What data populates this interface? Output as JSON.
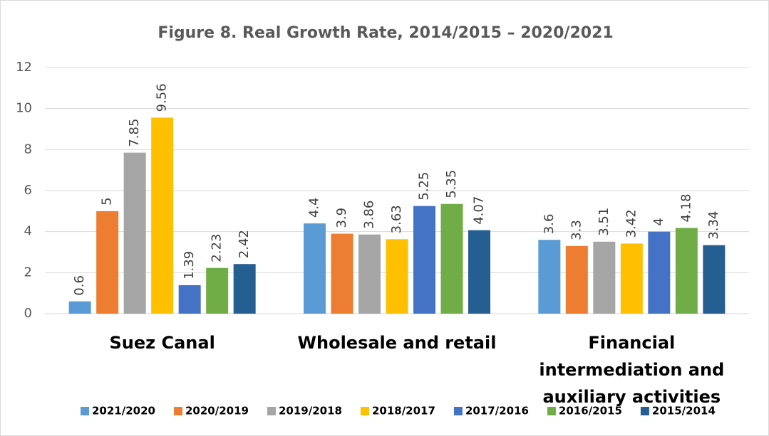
{
  "chart_data": {
    "type": "bar",
    "title": "Figure 8. Real Growth Rate, 2014/2015 – 2020/2021",
    "categories": [
      "Suez Canal",
      "Wholesale and retail",
      "Financial intermediation and auxiliary activities"
    ],
    "series": [
      {
        "name": "2021/2020",
        "color": "#5b9bd5",
        "values": [
          0.6,
          4.4,
          3.6
        ]
      },
      {
        "name": "2020/2019",
        "color": "#ed7d31",
        "values": [
          5,
          3.9,
          3.3
        ]
      },
      {
        "name": "2019/2018",
        "color": "#a5a5a5",
        "values": [
          7.85,
          3.86,
          3.51
        ]
      },
      {
        "name": "2018/2017",
        "color": "#ffc000",
        "values": [
          9.56,
          3.63,
          3.42
        ]
      },
      {
        "name": "2017/2016",
        "color": "#4472c4",
        "values": [
          1.39,
          5.25,
          4
        ]
      },
      {
        "name": "2016/2015",
        "color": "#70ad47",
        "values": [
          2.23,
          5.35,
          4.18
        ]
      },
      {
        "name": "2015/2014",
        "color": "#255e91",
        "values": [
          2.42,
          4.07,
          3.34
        ]
      }
    ],
    "ylim": [
      0,
      12
    ],
    "yticks": [
      0,
      2,
      4,
      6,
      8,
      10,
      12
    ],
    "grid": true,
    "legend": "bottom"
  }
}
